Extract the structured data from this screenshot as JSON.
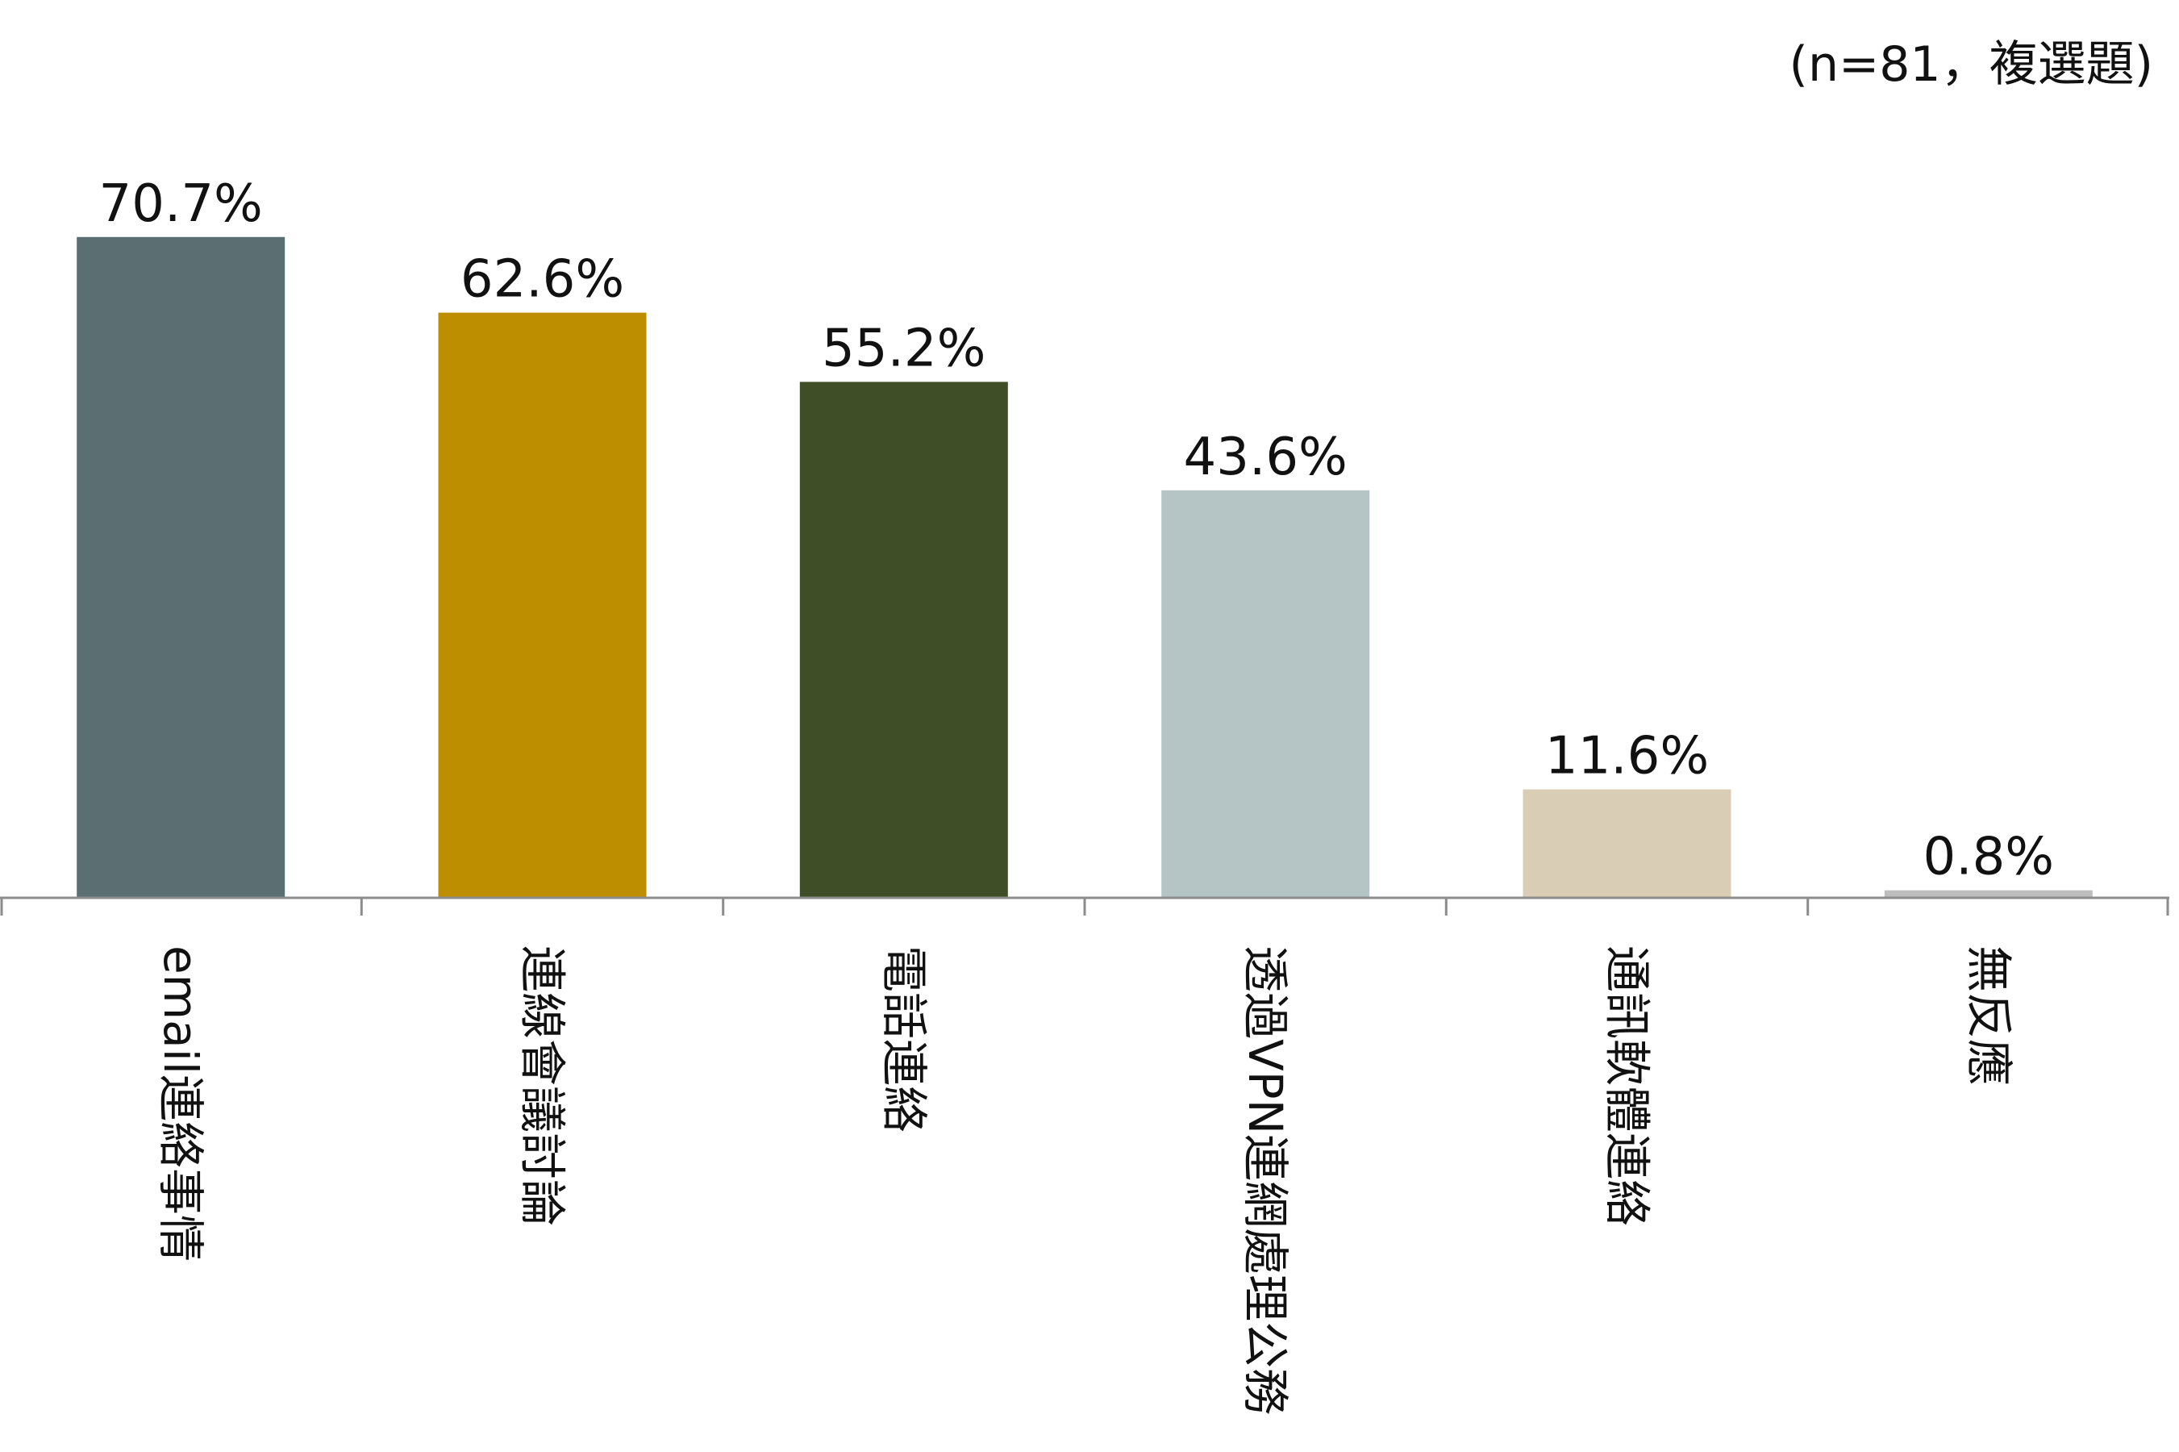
{
  "note": "(n=81，複選題)",
  "chart_data": {
    "type": "bar",
    "title": "",
    "xlabel": "",
    "ylabel": "",
    "ylim": [
      0,
      80
    ],
    "grid": false,
    "legend": "none",
    "categories": [
      "email連絡事情",
      "連線會議討論",
      "電話連絡",
      "透過VPN連網處理公務",
      "通訊軟體連絡",
      "無反應"
    ],
    "values": [
      70.7,
      62.6,
      55.2,
      43.6,
      11.6,
      0.8
    ],
    "value_labels": [
      "70.7%",
      "62.6%",
      "55.2%",
      "43.6%",
      "11.6%",
      "0.8%"
    ],
    "colors": [
      "#5B6F73",
      "#BC8E00",
      "#3F4E27",
      "#B5C4C5",
      "#DACDB6",
      "#BDBDBD"
    ],
    "axis_color": "#8C8C8C"
  }
}
